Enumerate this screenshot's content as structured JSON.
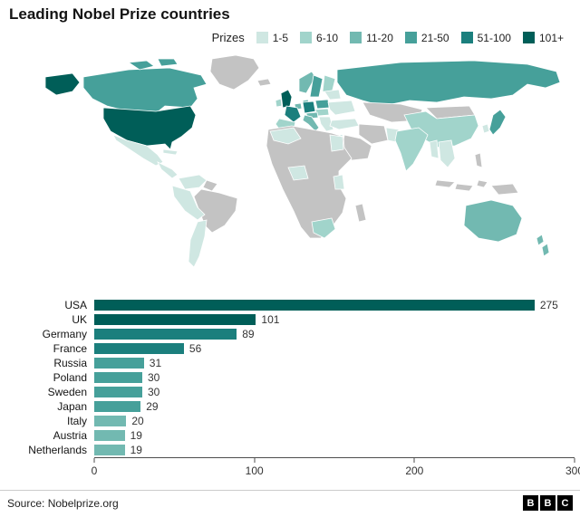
{
  "title": "Leading Nobel Prize countries",
  "legend": {
    "label": "Prizes",
    "buckets": [
      {
        "label": "1-5",
        "color": "#cfe7e2"
      },
      {
        "label": "6-10",
        "color": "#a1d4cb"
      },
      {
        "label": "11-20",
        "color": "#72b9b1"
      },
      {
        "label": "21-50",
        "color": "#46a09a"
      },
      {
        "label": "51-100",
        "color": "#1b7f7d"
      },
      {
        "label": "101+",
        "color": "#005e58"
      }
    ]
  },
  "map": {
    "no_data_color": "#c3c3c3",
    "regions": [
      {
        "id": "usa",
        "bucket": "101+"
      },
      {
        "id": "usa-alaska",
        "bucket": "101+"
      },
      {
        "id": "canada",
        "bucket": "21-50"
      },
      {
        "id": "canada-arctic-1",
        "bucket": "21-50"
      },
      {
        "id": "canada-arctic-2",
        "bucket": "21-50"
      },
      {
        "id": "mexico",
        "bucket": "1-5"
      },
      {
        "id": "central-america",
        "bucket": "1-5"
      },
      {
        "id": "cuba",
        "bucket": "1-5"
      },
      {
        "id": "colombia-venezuela",
        "bucket": "1-5"
      },
      {
        "id": "peru-bolivia",
        "bucket": "1-5"
      },
      {
        "id": "chile-argentina",
        "bucket": "1-5"
      },
      {
        "id": "uk",
        "bucket": "101+"
      },
      {
        "id": "ireland",
        "bucket": "6-10"
      },
      {
        "id": "norway",
        "bucket": "11-20"
      },
      {
        "id": "sweden",
        "bucket": "21-50"
      },
      {
        "id": "finland",
        "bucket": "6-10"
      },
      {
        "id": "denmark",
        "bucket": "11-20"
      },
      {
        "id": "benelux",
        "bucket": "11-20"
      },
      {
        "id": "germany",
        "bucket": "51-100"
      },
      {
        "id": "poland",
        "bucket": "21-50"
      },
      {
        "id": "baltics-belarus",
        "bucket": "1-5"
      },
      {
        "id": "ukraine-romania",
        "bucket": "1-5"
      },
      {
        "id": "czech-hungary",
        "bucket": "6-10"
      },
      {
        "id": "austria",
        "bucket": "11-20"
      },
      {
        "id": "france",
        "bucket": "51-100"
      },
      {
        "id": "spain",
        "bucket": "6-10"
      },
      {
        "id": "italy",
        "bucket": "11-20"
      },
      {
        "id": "balkans-greece",
        "bucket": "1-5"
      },
      {
        "id": "russia",
        "bucket": "21-50"
      },
      {
        "id": "turkey",
        "bucket": "1-5"
      },
      {
        "id": "israel",
        "bucket": "6-10"
      },
      {
        "id": "egypt",
        "bucket": "1-5"
      },
      {
        "id": "morocco-algeria",
        "bucket": "1-5"
      },
      {
        "id": "west-africa",
        "bucket": "1-5"
      },
      {
        "id": "east-africa",
        "bucket": "1-5"
      },
      {
        "id": "south-africa",
        "bucket": "6-10"
      },
      {
        "id": "pakistan",
        "bucket": "1-5"
      },
      {
        "id": "india",
        "bucket": "6-10"
      },
      {
        "id": "myanmar",
        "bucket": "1-5"
      },
      {
        "id": "thailand-vietnam",
        "bucket": "1-5"
      },
      {
        "id": "china",
        "bucket": "6-10"
      },
      {
        "id": "south-korea",
        "bucket": "1-5"
      },
      {
        "id": "japan",
        "bucket": "21-50"
      },
      {
        "id": "australia",
        "bucket": "11-20"
      },
      {
        "id": "new-zealand",
        "bucket": "11-20"
      }
    ]
  },
  "chart_data": {
    "type": "bar",
    "orientation": "horizontal",
    "categories": [
      "USA",
      "UK",
      "Germany",
      "France",
      "Russia",
      "Poland",
      "Sweden",
      "Japan",
      "Italy",
      "Austria",
      "Netherlands"
    ],
    "values": [
      275,
      101,
      89,
      56,
      31,
      30,
      30,
      29,
      20,
      19,
      19
    ],
    "buckets": [
      "101+",
      "101+",
      "51-100",
      "51-100",
      "21-50",
      "21-50",
      "21-50",
      "21-50",
      "11-20",
      "11-20",
      "11-20"
    ],
    "xticks": [
      0,
      100,
      200,
      300
    ],
    "xlim": [
      0,
      300
    ],
    "title": "Leading Nobel Prize countries",
    "xlabel": "",
    "ylabel": "",
    "grid": false,
    "legend_position": "top"
  },
  "footer": {
    "source": "Source: Nobelprize.org",
    "logo_letters": [
      "B",
      "B",
      "C"
    ]
  }
}
